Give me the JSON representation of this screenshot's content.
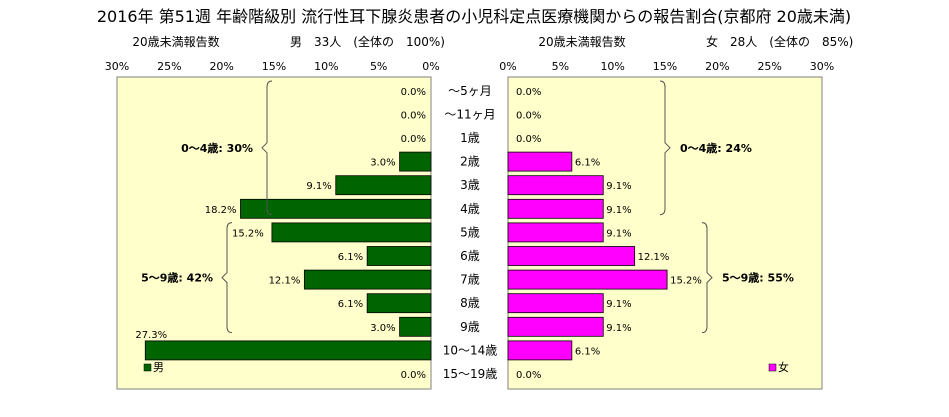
{
  "title": "2016年 第51週 年齢階級別 流行性耳下腺炎患者の小児科定点医療機関からの報告割合(京都府 20歳未満)",
  "left_header": {
    "caption": "20歳未満報告数",
    "summary": "男　33人　(全体の　100%)"
  },
  "right_header": {
    "caption": "20歳未満報告数",
    "summary": "女　28人　(全体の　85%)"
  },
  "colors": {
    "male": "#006400",
    "female": "#ff00ff",
    "plot_bg": "#ffffcc"
  },
  "chart_data": {
    "type": "bar",
    "orientation": "horizontal-butterfly",
    "categories": [
      "～5ヶ月",
      "～11ヶ月",
      "1歳",
      "2歳",
      "3歳",
      "4歳",
      "5歳",
      "6歳",
      "7歳",
      "8歳",
      "9歳",
      "10～14歳",
      "15～19歳"
    ],
    "series": [
      {
        "name": "男",
        "values": [
          0.0,
          0.0,
          0.0,
          3.0,
          9.1,
          18.2,
          15.2,
          6.1,
          12.1,
          6.1,
          3.0,
          27.3,
          0.0
        ],
        "labels": [
          "0.0%",
          "0.0%",
          "0.0%",
          "3.0%",
          "9.1%",
          "18.2%",
          "15.2%",
          "6.1%",
          "12.1%",
          "6.1%",
          "3.0%",
          "27.3%",
          "0.0%"
        ]
      },
      {
        "name": "女",
        "values": [
          0.0,
          0.0,
          0.0,
          6.1,
          9.1,
          9.1,
          9.1,
          12.1,
          15.2,
          9.1,
          9.1,
          6.1,
          0.0
        ],
        "labels": [
          "0.0%",
          "0.0%",
          "0.0%",
          "6.1%",
          "9.1%",
          "9.1%",
          "9.1%",
          "12.1%",
          "15.2%",
          "9.1%",
          "9.1%",
          "6.1%",
          "0.0%"
        ]
      }
    ],
    "xlim": [
      0,
      30
    ],
    "x_ticks": [
      "0%",
      "5%",
      "10%",
      "15%",
      "20%",
      "25%",
      "30%"
    ],
    "group_annotations": {
      "male": [
        {
          "label": "0～4歳: 30%",
          "from": 0,
          "to": 5
        },
        {
          "label": "5～9歳: 42%",
          "from": 6,
          "to": 10
        }
      ],
      "female": [
        {
          "label": "0～4歳: 24%",
          "from": 0,
          "to": 5
        },
        {
          "label": "5～9歳: 55%",
          "from": 6,
          "to": 10
        }
      ]
    },
    "legend": {
      "male": "男",
      "female": "女",
      "male_position": "bottom-left",
      "female_position": "bottom-right"
    }
  }
}
